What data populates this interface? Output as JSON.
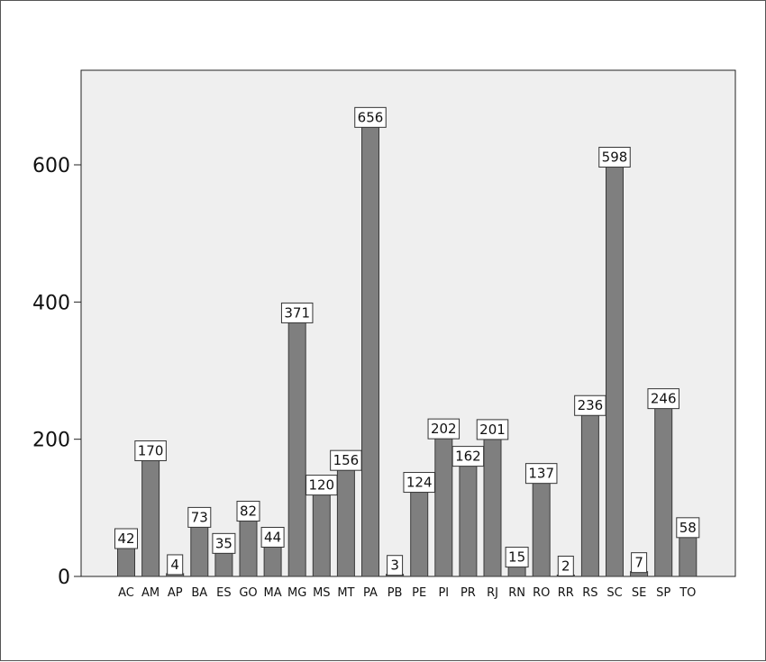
{
  "chart_data": {
    "type": "bar",
    "title": "",
    "xlabel": "",
    "ylabel": "",
    "ylim": [
      0,
      720
    ],
    "yticks": [
      0,
      200,
      400,
      600
    ],
    "grid": false,
    "colors": {
      "plot_background": "#efefef",
      "bar_fill": "#7f7f7f",
      "bar_stroke": "#3a3a3a",
      "label_box_fill": "#ffffff",
      "label_box_stroke": "#333333"
    },
    "categories": [
      "AC",
      "AM",
      "AP",
      "BA",
      "ES",
      "GO",
      "MA",
      "MG",
      "MS",
      "MT",
      "PA",
      "PB",
      "PE",
      "PI",
      "PR",
      "RJ",
      "RN",
      "RO",
      "RR",
      "RS",
      "SC",
      "SE",
      "SP",
      "TO"
    ],
    "values": [
      42,
      170,
      4,
      73,
      35,
      82,
      44,
      371,
      120,
      156,
      656,
      3,
      124,
      202,
      162,
      201,
      15,
      137,
      2,
      236,
      598,
      7,
      246,
      58
    ]
  }
}
